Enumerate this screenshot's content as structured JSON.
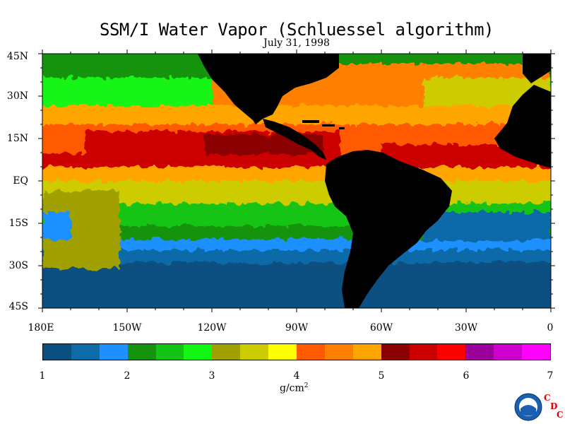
{
  "title": "SSM/I Water Vapor (Schluessel algorithm)",
  "date": "July 31, 1998",
  "lat_labels": [
    "45N",
    "30N",
    "15N",
    "EQ",
    "15S",
    "30S",
    "45S"
  ],
  "lon_labels": [
    "180E",
    "150W",
    "120W",
    "90W",
    "60W",
    "30W",
    "0"
  ],
  "colorbar": {
    "colors": [
      "#0b4f80",
      "#0d6ba8",
      "#1e90ff",
      "#15930f",
      "#14c414",
      "#13f513",
      "#a0a000",
      "#cccc00",
      "#ffff00",
      "#ff5a00",
      "#ff7f00",
      "#ffa500",
      "#8b0000",
      "#cd0000",
      "#ff0000",
      "#9b009b",
      "#cd00cd",
      "#ff00ff"
    ],
    "tick_labels": [
      "1",
      "2",
      "3",
      "4",
      "5",
      "6",
      "7"
    ],
    "units": "g/cm",
    "units_exp": "2"
  },
  "logo": {
    "text": "NOAA",
    "letters": [
      "C",
      "D",
      "C"
    ]
  }
}
